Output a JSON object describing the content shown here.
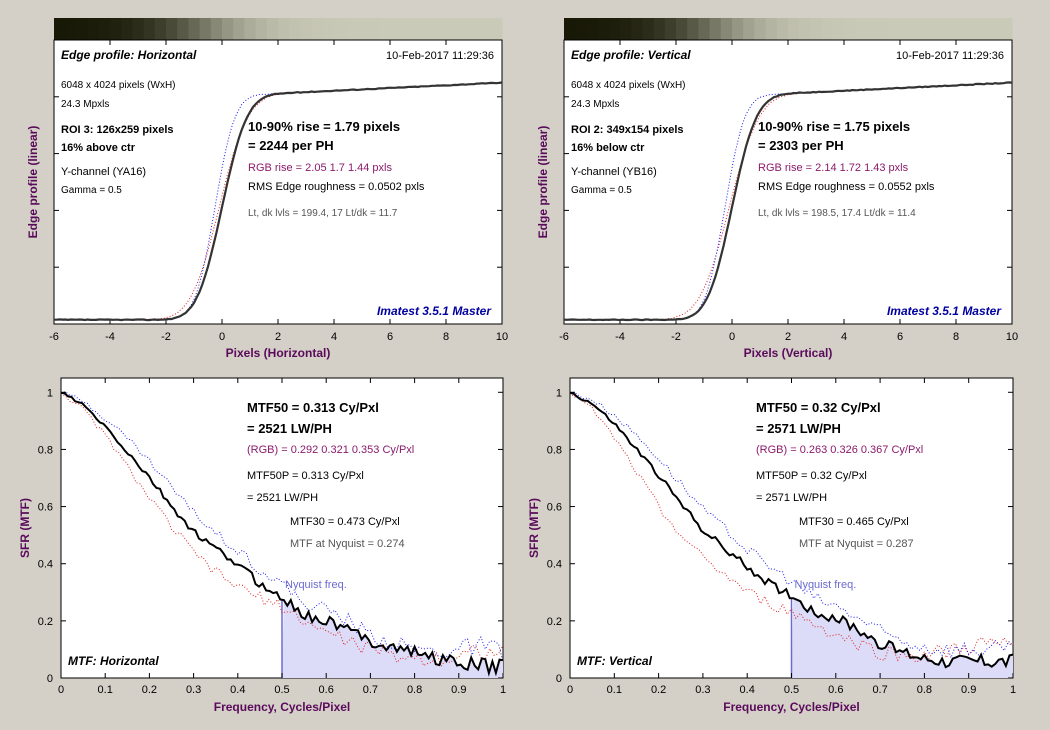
{
  "colors": {
    "background": "#d4d0c8",
    "plot_bg": "#ffffff",
    "axis_label": "#5a0a5a",
    "black_series": "#000000",
    "red_series": "#e02020",
    "blue_series": "#1a1aee",
    "rgb_text": "#8b1a6b",
    "imatest_blue": "#0000a0",
    "gray_text": "#555555",
    "nyquist_fill": "#dcdcf8",
    "nyquist_line": "#6a6ad0"
  },
  "charts": [
    {
      "type": "line",
      "kind": "edge",
      "title": "Edge profile: Horizontal",
      "timestamp": "10-Feb-2017 11:29:36",
      "info": [
        "6048 x 4024 pixels (WxH)",
        "24.3 Mpxls"
      ],
      "roi": [
        "ROI 3:  126x259 pixels",
        "16% above ctr"
      ],
      "channel": [
        "Y-channel  (YA16)",
        "Gamma = 0.5"
      ],
      "rise": "10-90% rise = 1.79 pixels",
      "per_ph": "= 2244 per PH",
      "rgb_rise": "RGB rise = 2.05  1.7  1.44 pxls",
      "rms": "RMS Edge roughness = 0.0502 pxls",
      "levels": "Lt, dk lvls = 199.4, 17   Lt/dk = 11.7",
      "brand": "Imatest 3.5.1 Master",
      "xlabel": "Pixels (Horizontal)",
      "ylabel": "Edge profile (linear)",
      "xlim": [
        -6,
        10
      ],
      "xticks": [
        "-6",
        "-4",
        "-2",
        "0",
        "2",
        "4",
        "6",
        "8",
        "10"
      ],
      "ylim": [
        0,
        1
      ],
      "rise_pixels": 1.79,
      "red_rise_pixels": 2.05,
      "blue_rise_pixels": 1.44,
      "gamma": 0.5,
      "dark_level": 17,
      "light_level": 199.4
    },
    {
      "type": "line",
      "kind": "edge",
      "title": "Edge profile: Vertical",
      "timestamp": "10-Feb-2017 11:29:36",
      "info": [
        "6048 x 4024 pixels (WxH)",
        "24.3 Mpxls"
      ],
      "roi": [
        "ROI 2:  349x154 pixels",
        "16% below ctr"
      ],
      "channel": [
        "Y-channel  (YB16)",
        "Gamma = 0.5"
      ],
      "rise": "10-90% rise = 1.75 pixels",
      "per_ph": "= 2303 per PH",
      "rgb_rise": "RGB rise = 2.14  1.72  1.43 pxls",
      "rms": "RMS Edge roughness = 0.0552 pxls",
      "levels": "Lt, dk lvls = 198.5, 17.4   Lt/dk = 11.4",
      "brand": "Imatest 3.5.1 Master",
      "xlabel": "Pixels (Vertical)",
      "ylabel": "Edge profile (linear)",
      "xlim": [
        -6,
        10
      ],
      "xticks": [
        "-6",
        "-4",
        "-2",
        "0",
        "2",
        "4",
        "6",
        "8",
        "10"
      ],
      "ylim": [
        0,
        1
      ],
      "rise_pixels": 1.75,
      "red_rise_pixels": 2.14,
      "blue_rise_pixels": 1.43,
      "gamma": 0.5,
      "dark_level": 17.4,
      "light_level": 198.5
    },
    {
      "type": "line",
      "kind": "mtf",
      "mtf50": "MTF50 = 0.313 Cy/Pxl",
      "mtf50_lwph": "= 2521 LW/PH",
      "rgb": "(RGB) = 0.292  0.321  0.353 Cy/Pxl",
      "mtf50p": "MTF50P = 0.313 Cy/Pxl",
      "mtf50p_lwph": "= 2521 LW/PH",
      "mtf30": "MTF30 = 0.473 Cy/Pxl",
      "nyq_text": "MTF at Nyquist = 0.274",
      "nyq_label": "Nyquist freq.",
      "label": "MTF: Horizontal",
      "xlabel": "Frequency, Cycles/Pixel",
      "ylabel": "SFR (MTF)",
      "xlim": [
        0,
        1
      ],
      "ylim": [
        0,
        1.05
      ],
      "xticks": [
        "0",
        "0.1",
        "0.2",
        "0.3",
        "0.4",
        "0.5",
        "0.6",
        "0.7",
        "0.8",
        "0.9",
        "1"
      ],
      "yticks": [
        "0",
        "0.2",
        "0.4",
        "0.6",
        "0.8",
        "1"
      ],
      "nyquist": 0.5,
      "series": {
        "x": [
          0,
          0.05,
          0.1,
          0.15,
          0.2,
          0.25,
          0.3,
          0.35,
          0.4,
          0.45,
          0.5,
          0.55,
          0.6,
          0.65,
          0.7,
          0.75,
          0.8,
          0.85,
          0.9,
          0.95,
          1.0
        ],
        "y": [
          1.0,
          0.955,
          0.88,
          0.79,
          0.7,
          0.6,
          0.51,
          0.45,
          0.4,
          0.33,
          0.28,
          0.22,
          0.2,
          0.17,
          0.13,
          0.11,
          0.09,
          0.07,
          0.05,
          0.045,
          0.04
        ],
        "red": [
          1.0,
          0.94,
          0.85,
          0.74,
          0.63,
          0.53,
          0.44,
          0.37,
          0.32,
          0.28,
          0.25,
          0.2,
          0.16,
          0.13,
          0.1,
          0.08,
          0.07,
          0.07,
          0.08,
          0.1,
          0.08
        ],
        "blue": [
          1.0,
          0.97,
          0.91,
          0.84,
          0.76,
          0.67,
          0.58,
          0.51,
          0.45,
          0.38,
          0.33,
          0.26,
          0.24,
          0.2,
          0.15,
          0.12,
          0.1,
          0.09,
          0.1,
          0.11,
          0.09
        ]
      }
    },
    {
      "type": "line",
      "kind": "mtf",
      "mtf50": "MTF50 = 0.32 Cy/Pxl",
      "mtf50_lwph": "= 2571 LW/PH",
      "rgb": "(RGB) = 0.263  0.326  0.367 Cy/Pxl",
      "mtf50p": "MTF50P = 0.32 Cy/Pxl",
      "mtf50p_lwph": "= 2571 LW/PH",
      "mtf30": "MTF30 = 0.465 Cy/Pxl",
      "nyq_text": "MTF at Nyquist = 0.287",
      "nyq_label": "Nyquist freq.",
      "label": "MTF: Vertical",
      "xlabel": "Frequency, Cycles/Pixel",
      "ylabel": "SFR (MTF)",
      "xlim": [
        0,
        1
      ],
      "ylim": [
        0,
        1.05
      ],
      "xticks": [
        "0",
        "0.1",
        "0.2",
        "0.3",
        "0.4",
        "0.5",
        "0.6",
        "0.7",
        "0.8",
        "0.9",
        "1"
      ],
      "yticks": [
        "0",
        "0.2",
        "0.4",
        "0.6",
        "0.8",
        "1"
      ],
      "nyquist": 0.5,
      "series": {
        "x": [
          0,
          0.05,
          0.1,
          0.15,
          0.2,
          0.25,
          0.3,
          0.35,
          0.4,
          0.45,
          0.5,
          0.55,
          0.6,
          0.65,
          0.7,
          0.75,
          0.8,
          0.85,
          0.9,
          0.95,
          1.0
        ],
        "y": [
          1.0,
          0.96,
          0.89,
          0.8,
          0.71,
          0.61,
          0.52,
          0.45,
          0.39,
          0.33,
          0.29,
          0.23,
          0.21,
          0.17,
          0.12,
          0.09,
          0.07,
          0.06,
          0.06,
          0.06,
          0.06
        ],
        "red": [
          1.0,
          0.94,
          0.84,
          0.72,
          0.6,
          0.5,
          0.42,
          0.36,
          0.3,
          0.26,
          0.23,
          0.19,
          0.15,
          0.12,
          0.09,
          0.08,
          0.08,
          0.09,
          0.11,
          0.12,
          0.1
        ],
        "blue": [
          1.0,
          0.975,
          0.92,
          0.85,
          0.77,
          0.68,
          0.59,
          0.52,
          0.45,
          0.39,
          0.34,
          0.28,
          0.25,
          0.21,
          0.16,
          0.13,
          0.11,
          0.1,
          0.1,
          0.1,
          0.09
        ]
      }
    }
  ]
}
